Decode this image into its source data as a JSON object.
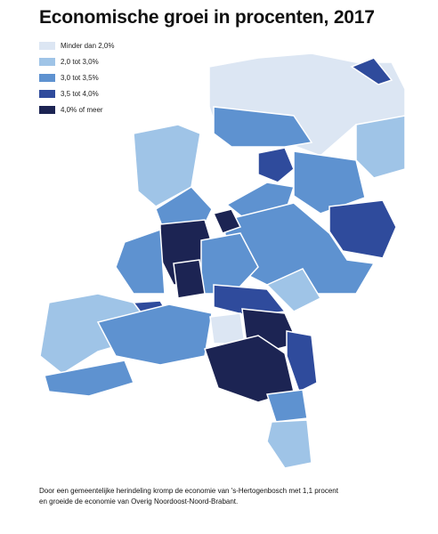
{
  "title": "Economische groei in procenten, 2017",
  "legend": [
    {
      "label": "Minder dan 2,0%",
      "color": "#dce6f3"
    },
    {
      "label": "2,0 tot 3,0%",
      "color": "#9fc4e7"
    },
    {
      "label": "3,0 tot 3,5%",
      "color": "#5e92d0"
    },
    {
      "label": "3,5 tot 4,0%",
      "color": "#2f4b9c"
    },
    {
      "label": "4,0% of meer",
      "color": "#1c2453"
    }
  ],
  "footnote": [
    "Door een gemeentelijke herindeling kromp de economie van 's-Hertogenbosch met 1,1 procent",
    "en groeide de economie van Overig Noordoost-Noord-Brabant."
  ]
}
